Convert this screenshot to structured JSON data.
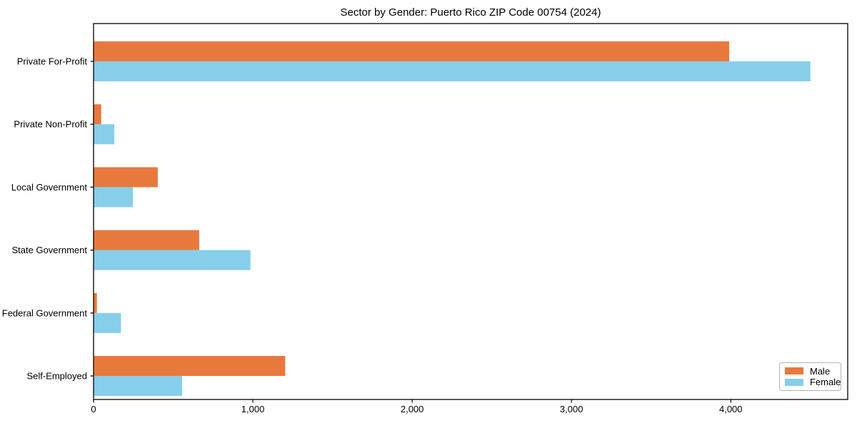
{
  "chart_data": {
    "type": "bar",
    "orientation": "horizontal",
    "title": "Sector by Gender: Puerto Rico ZIP Code 00754 (2024)",
    "categories": [
      "Private For-Profit",
      "Private Non-Profit",
      "Local Government",
      "State Government",
      "Federal Government",
      "Self-Employed"
    ],
    "series": [
      {
        "name": "Male",
        "color": "#E8793C",
        "values": [
          3990,
          48,
          403,
          663,
          21,
          1203
        ]
      },
      {
        "name": "Female",
        "color": "#87CEEB",
        "values": [
          4500,
          130,
          247,
          985,
          172,
          556
        ]
      }
    ],
    "xlabel": "",
    "ylabel": "",
    "xlim": [
      0,
      4734
    ],
    "x_ticks": [
      0,
      1000,
      2000,
      3000,
      4000
    ],
    "x_tick_labels": [
      "0",
      "1,000",
      "2,000",
      "3,000",
      "4,000"
    ],
    "grid": false,
    "legend_position": "lower right",
    "axis_color": "#000000"
  }
}
